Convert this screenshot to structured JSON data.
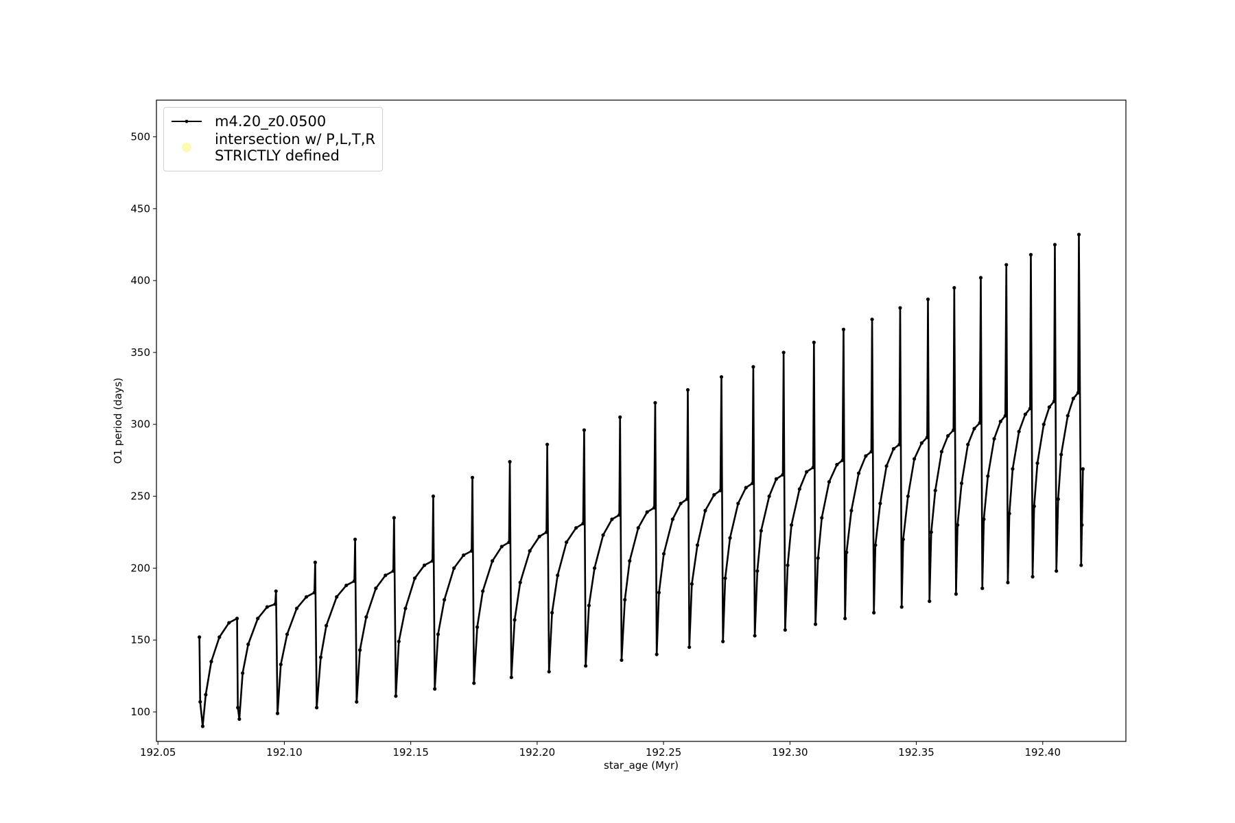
{
  "chart_data": {
    "type": "line",
    "xlabel": "star_age (Myr)",
    "ylabel": "O1 period (days)",
    "xlim": [
      192.0494,
      192.4329
    ],
    "ylim": [
      79.5,
      525.5
    ],
    "xticks": [
      192.05,
      {
        "value": 192.1,
        "label": "192.10"
      },
      192.15,
      {
        "value": 192.2,
        "label": "192.20"
      },
      192.25,
      {
        "value": 192.3,
        "label": "192.30"
      },
      192.35,
      {
        "value": 192.4,
        "label": "192.40"
      }
    ],
    "yticks": [
      100,
      150,
      200,
      250,
      300,
      350,
      400,
      450,
      500
    ],
    "grid": false,
    "legend": "upper left",
    "series": [
      {
        "name": "m4.20_z0.0500",
        "color": "#000000",
        "marker": "dot",
        "x": [
          192.0664,
          192.0667,
          192.0677,
          192.0689,
          192.0711,
          192.0743,
          192.0781,
          192.0813,
          192.0816,
          192.0822,
          192.0835,
          192.0857,
          192.0895,
          192.0932,
          192.0964,
          192.0967,
          192.0973,
          192.0986,
          192.1011,
          192.1049,
          192.1087,
          192.1119,
          192.1122,
          192.1128,
          192.1144,
          192.1166,
          192.1207,
          192.1245,
          192.1277,
          192.128,
          192.1286,
          192.1299,
          192.1324,
          192.1362,
          192.14,
          192.1431,
          192.1434,
          192.1441,
          192.1453,
          192.1479,
          192.1516,
          192.1554,
          192.1586,
          192.1589,
          192.1595,
          192.1608,
          192.1633,
          192.1671,
          192.1709,
          192.1741,
          192.1744,
          192.175,
          192.1763,
          192.1785,
          192.1823,
          192.186,
          192.1889,
          192.1892,
          192.1898,
          192.1911,
          192.1933,
          192.1971,
          192.2009,
          192.2037,
          192.204,
          192.2047,
          192.2059,
          192.2081,
          192.2116,
          192.2154,
          192.2182,
          192.2186,
          192.2192,
          192.2205,
          192.2227,
          192.2261,
          192.2296,
          192.2325,
          192.2328,
          192.2334,
          192.2347,
          192.2366,
          192.24,
          192.2435,
          192.2463,
          192.2467,
          192.2473,
          192.2482,
          192.2501,
          192.2536,
          192.2568,
          192.2593,
          192.2596,
          192.2602,
          192.2612,
          192.2634,
          192.2665,
          192.27,
          192.2725,
          192.2729,
          192.2735,
          192.2744,
          192.2763,
          192.2795,
          192.2826,
          192.2852,
          192.2855,
          192.2861,
          192.2871,
          192.2886,
          192.2918,
          192.2946,
          192.2972,
          192.2975,
          192.2981,
          192.2991,
          192.3006,
          192.3038,
          192.3066,
          192.3092,
          192.3095,
          192.3101,
          192.3111,
          192.3126,
          192.3155,
          192.3186,
          192.3208,
          192.3212,
          192.3218,
          192.3224,
          192.3243,
          192.3272,
          192.33,
          192.3322,
          192.3325,
          192.3332,
          192.3338,
          192.3357,
          192.3382,
          192.341,
          192.3433,
          192.3436,
          192.3442,
          192.3448,
          192.3467,
          192.3492,
          192.3521,
          192.3543,
          192.3546,
          192.3552,
          192.3559,
          192.3575,
          192.36,
          192.3625,
          192.3647,
          192.365,
          192.3657,
          192.3663,
          192.3679,
          192.3704,
          192.3729,
          192.3751,
          192.3755,
          192.3761,
          192.3767,
          192.3783,
          192.3808,
          192.3833,
          192.3852,
          192.3856,
          192.3862,
          192.3868,
          192.3881,
          192.3906,
          192.3931,
          192.395,
          192.3953,
          192.396,
          192.3966,
          192.3979,
          192.4004,
          192.4026,
          192.4045,
          192.4048,
          192.4054,
          192.4061,
          192.4073,
          192.4099,
          192.4121,
          192.414,
          192.4143,
          192.4152,
          192.4155,
          192.4159
        ],
        "values": [
          152,
          107,
          90,
          112,
          135,
          152,
          162,
          165,
          103,
          95,
          127,
          147,
          165,
          173,
          175,
          184,
          99,
          133,
          154,
          172,
          180,
          183,
          204,
          103,
          138,
          160,
          180,
          188,
          191,
          220,
          107,
          143,
          166,
          186,
          195,
          198,
          235,
          111,
          149,
          172,
          193,
          202,
          205,
          250,
          116,
          154,
          178,
          200,
          209,
          212,
          263,
          120,
          159,
          184,
          205,
          215,
          218,
          274,
          124,
          164,
          190,
          212,
          222,
          225,
          286,
          128,
          169,
          195,
          218,
          228,
          231,
          296,
          132,
          174,
          200,
          223,
          234,
          237,
          305,
          136,
          178,
          205,
          228,
          239,
          242,
          315,
          140,
          183,
          210,
          234,
          245,
          248,
          324,
          145,
          189,
          216,
          240,
          251,
          254,
          333,
          149,
          193,
          221,
          245,
          256,
          259,
          340,
          153,
          198,
          226,
          250,
          262,
          265,
          350,
          157,
          202,
          230,
          255,
          267,
          270,
          357,
          161,
          207,
          235,
          260,
          272,
          275,
          366,
          165,
          211,
          240,
          266,
          278,
          281,
          373,
          169,
          216,
          245,
          271,
          283,
          286,
          381,
          173,
          220,
          250,
          276,
          287,
          291,
          387,
          177,
          225,
          254,
          281,
          292,
          296,
          395,
          182,
          230,
          259,
          286,
          297,
          301,
          402,
          186,
          234,
          264,
          290,
          302,
          306,
          411,
          190,
          238,
          269,
          295,
          307,
          311,
          418,
          194,
          243,
          273,
          300,
          312,
          316,
          425,
          198,
          248,
          279,
          306,
          318,
          322,
          432,
          202,
          230,
          269
        ]
      },
      {
        "name": "intersection w/ P,L,T,R\nSTRICTLY defined",
        "color": "#fbfbb4",
        "type": "scatter",
        "x": [],
        "values": []
      }
    ]
  }
}
